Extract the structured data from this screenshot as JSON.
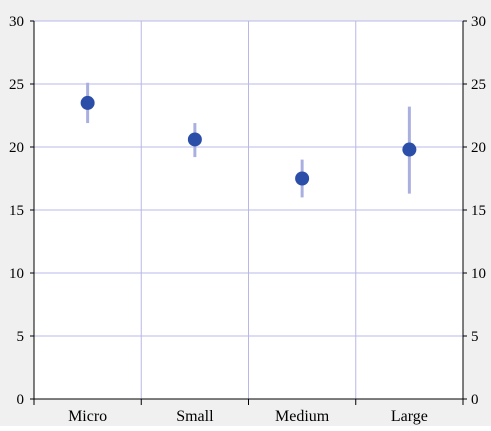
{
  "colors": {
    "background": "#f0f0f0",
    "plot_background": "#ffffff",
    "grid": "#b8b8e8",
    "axis": "#000000",
    "point": "#2b4ea8",
    "error_bar": "#a9b0e0"
  },
  "chart_data": {
    "type": "scatter",
    "title": "",
    "xlabel": "",
    "ylabel": "",
    "categories": [
      "Micro",
      "Small",
      "Medium",
      "Large"
    ],
    "ylim": [
      0,
      30
    ],
    "yticks": [
      "0",
      "5",
      "10",
      "15",
      "20",
      "25",
      "30"
    ],
    "grid": true,
    "secondary_y_axis": true,
    "series": [
      {
        "values": [
          23.5,
          20.6,
          17.5,
          19.8
        ],
        "error_low": [
          21.9,
          19.2,
          16.0,
          16.3
        ],
        "error_high": [
          25.1,
          21.9,
          19.0,
          23.2
        ]
      }
    ]
  }
}
